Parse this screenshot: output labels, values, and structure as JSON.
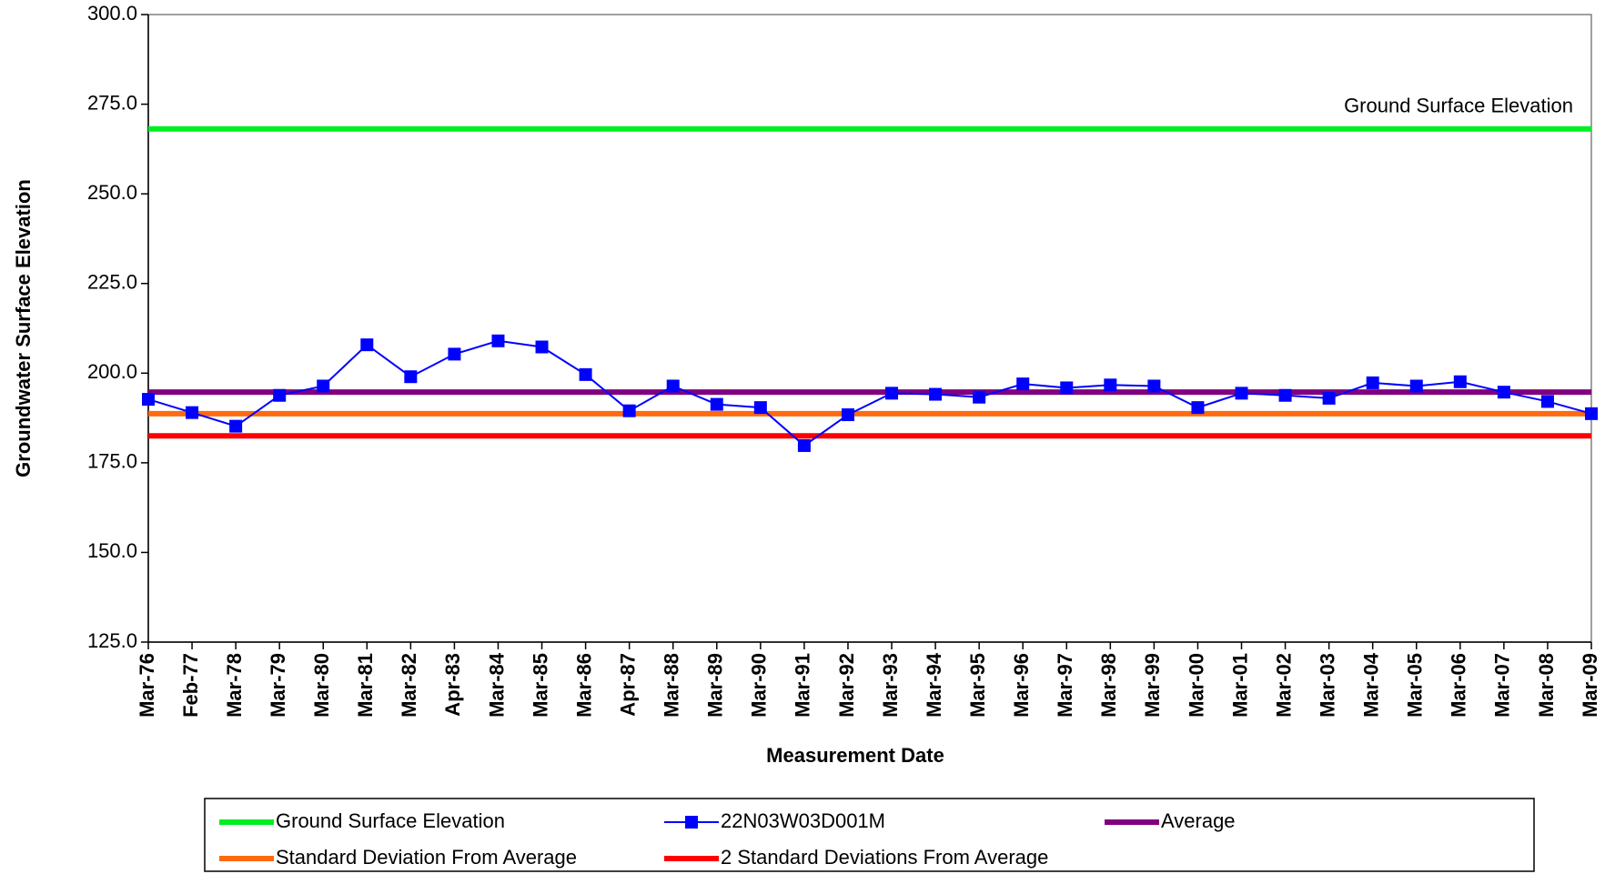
{
  "chart_data": {
    "type": "line",
    "y_label": "Groundwater Surface Elevation",
    "x_label": "Measurement Date",
    "categories": [
      "Mar-76",
      "Feb-77",
      "Mar-78",
      "Mar-79",
      "Mar-80",
      "Mar-81",
      "Mar-82",
      "Apr-83",
      "Mar-84",
      "Mar-85",
      "Mar-86",
      "Apr-87",
      "Mar-88",
      "Mar-89",
      "Mar-90",
      "Mar-91",
      "Mar-92",
      "Mar-93",
      "Mar-94",
      "Mar-95",
      "Mar-96",
      "Mar-97",
      "Mar-98",
      "Mar-99",
      "Mar-00",
      "Mar-01",
      "Mar-02",
      "Mar-03",
      "Mar-04",
      "Mar-05",
      "Mar-06",
      "Mar-07",
      "Mar-08",
      "Mar-09"
    ],
    "series": [
      {
        "name": "22N03W03D001M",
        "color": "#0000ff",
        "values": [
          192.7,
          189.0,
          185.2,
          193.8,
          196.4,
          207.9,
          199.0,
          205.3,
          209.0,
          207.3,
          199.6,
          189.5,
          196.4,
          191.3,
          190.4,
          179.8,
          188.4,
          194.4,
          194.1,
          193.3,
          197.0,
          195.9,
          196.7,
          196.4,
          190.4,
          194.4,
          193.8,
          193.0,
          197.3,
          196.4,
          197.6,
          194.7,
          192.1,
          188.7
        ]
      }
    ],
    "reference_lines": [
      {
        "name": "Ground Surface Elevation",
        "color": "#00ee22",
        "value": 268.1
      },
      {
        "name": "Average",
        "color": "#800080",
        "value": 194.7
      },
      {
        "name": "Standard Deviation From Average",
        "color": "#ff6a10",
        "value": 188.7
      },
      {
        "name": "2 Standard Deviations From Average",
        "color": "#ff0000",
        "value": 182.5
      }
    ],
    "annotation": "Ground Surface Elevation",
    "ylim": [
      125,
      300
    ],
    "yticks": [
      {
        "value": 125,
        "label": "125.0"
      },
      {
        "value": 150,
        "label": "150.0"
      },
      {
        "value": 175,
        "label": "175.0"
      },
      {
        "value": 200,
        "label": "200.0"
      },
      {
        "value": 225,
        "label": "225.0"
      },
      {
        "value": 250,
        "label": "250.0"
      },
      {
        "value": 275,
        "label": "275.0"
      },
      {
        "value": 300,
        "label": "300.0"
      }
    ],
    "grid": false
  }
}
